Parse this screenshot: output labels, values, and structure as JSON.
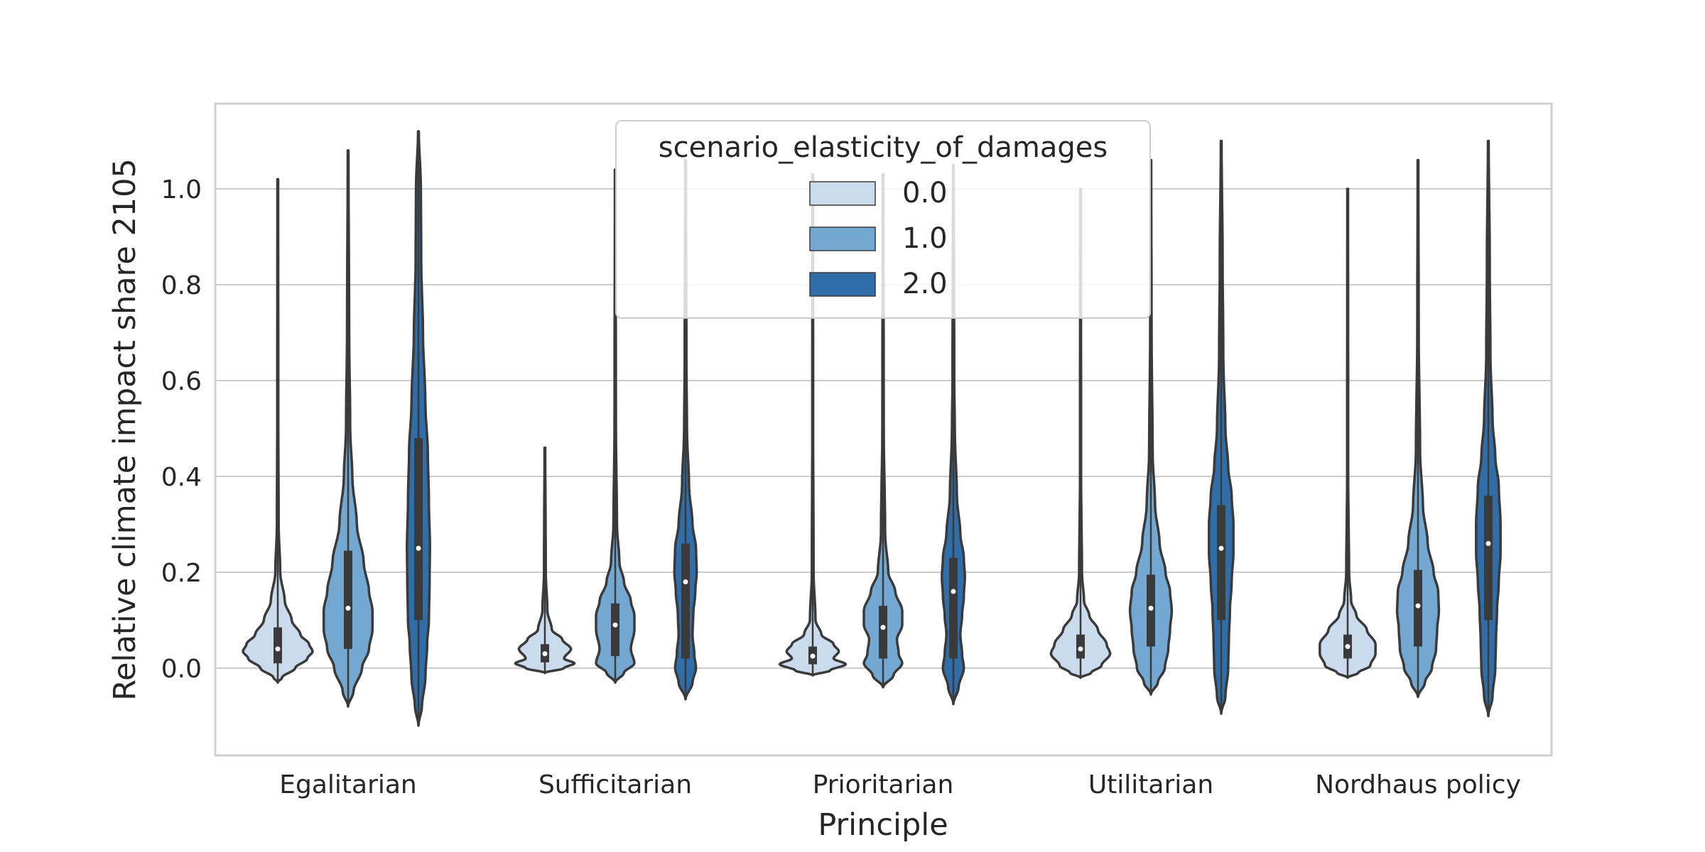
{
  "chart_data": {
    "type": "violin",
    "title": "",
    "xlabel": "Principle",
    "ylabel": "Relative climate impact share 2105",
    "ylim": [
      -0.18,
      1.18
    ],
    "yticks": [
      "0.0",
      "0.2",
      "0.4",
      "0.6",
      "0.8",
      "1.0"
    ],
    "categories": [
      "Egalitarian",
      "Sufficitarian",
      "Prioritarian",
      "Utilitarian",
      "Nordhaus policy"
    ],
    "grid": "horizontal",
    "legend": {
      "title": "scenario_elasticity_of_damages",
      "placement": "top-center",
      "entries": [
        "0.0",
        "1.0",
        "2.0"
      ]
    },
    "colors": {
      "0.0": "#c9dbec",
      "1.0": "#72a8d1",
      "2.0": "#2f6ea9",
      "outline": "#3a3a3a",
      "grid": "#cccccc",
      "frame": "#cfcfcf"
    },
    "series": [
      {
        "name": "0.0",
        "violins": [
          {
            "min": -0.03,
            "max": 1.02,
            "q1": 0.01,
            "median": 0.04,
            "q3": 0.085,
            "width": [
              [
                -0.03,
                0
              ],
              [
                -0.02,
                0.12
              ],
              [
                0,
                0.5
              ],
              [
                0.02,
                0.85
              ],
              [
                0.035,
                1
              ],
              [
                0.05,
                0.9
              ],
              [
                0.07,
                0.65
              ],
              [
                0.1,
                0.4
              ],
              [
                0.14,
                0.2
              ],
              [
                0.2,
                0.07
              ],
              [
                0.3,
                0.025
              ],
              [
                0.5,
                0.015
              ],
              [
                1.02,
                0.01
              ]
            ]
          },
          {
            "min": -0.01,
            "max": 0.46,
            "q1": 0.012,
            "median": 0.03,
            "q3": 0.05,
            "width": [
              [
                -0.01,
                0
              ],
              [
                0,
                0.55
              ],
              [
                0.01,
                0.85
              ],
              [
                0.02,
                0.55
              ],
              [
                0.04,
                0.75
              ],
              [
                0.06,
                0.5
              ],
              [
                0.08,
                0.2
              ],
              [
                0.12,
                0.07
              ],
              [
                0.2,
                0.025
              ],
              [
                0.46,
                0.01
              ]
            ]
          },
          {
            "min": -0.015,
            "max": 1.03,
            "q1": 0.008,
            "median": 0.025,
            "q3": 0.045,
            "width": [
              [
                -0.015,
                0
              ],
              [
                -0.005,
                0.5
              ],
              [
                0.008,
                0.95
              ],
              [
                0.02,
                0.6
              ],
              [
                0.035,
                0.75
              ],
              [
                0.05,
                0.6
              ],
              [
                0.07,
                0.25
              ],
              [
                0.1,
                0.08
              ],
              [
                0.2,
                0.025
              ],
              [
                0.5,
                0.012
              ],
              [
                1.03,
                0.01
              ]
            ]
          },
          {
            "min": -0.02,
            "max": 1.0,
            "q1": 0.02,
            "median": 0.04,
            "q3": 0.07,
            "width": [
              [
                -0.02,
                0
              ],
              [
                -0.01,
                0.3
              ],
              [
                0.005,
                0.6
              ],
              [
                0.03,
                0.85
              ],
              [
                0.05,
                0.75
              ],
              [
                0.08,
                0.5
              ],
              [
                0.11,
                0.25
              ],
              [
                0.14,
                0.1
              ],
              [
                0.2,
                0.04
              ],
              [
                0.4,
                0.015
              ],
              [
                1.0,
                0.01
              ]
            ]
          },
          {
            "min": -0.02,
            "max": 1.0,
            "q1": 0.02,
            "median": 0.045,
            "q3": 0.07,
            "width": [
              [
                -0.02,
                0
              ],
              [
                -0.01,
                0.3
              ],
              [
                0.005,
                0.65
              ],
              [
                0.03,
                0.8
              ],
              [
                0.05,
                0.8
              ],
              [
                0.08,
                0.55
              ],
              [
                0.11,
                0.25
              ],
              [
                0.14,
                0.1
              ],
              [
                0.2,
                0.04
              ],
              [
                0.4,
                0.015
              ],
              [
                1.0,
                0.01
              ]
            ]
          }
        ]
      },
      {
        "name": "1.0",
        "violins": [
          {
            "min": -0.08,
            "max": 1.08,
            "q1": 0.04,
            "median": 0.125,
            "q3": 0.245,
            "width": [
              [
                -0.08,
                0
              ],
              [
                -0.05,
                0.15
              ],
              [
                0,
                0.4
              ],
              [
                0.04,
                0.6
              ],
              [
                0.08,
                0.7
              ],
              [
                0.12,
                0.7
              ],
              [
                0.16,
                0.6
              ],
              [
                0.22,
                0.45
              ],
              [
                0.3,
                0.25
              ],
              [
                0.4,
                0.12
              ],
              [
                0.5,
                0.06
              ],
              [
                0.7,
                0.03
              ],
              [
                1.08,
                0.01
              ]
            ]
          },
          {
            "min": -0.03,
            "max": 1.04,
            "q1": 0.025,
            "median": 0.09,
            "q3": 0.135,
            "width": [
              [
                -0.03,
                0
              ],
              [
                -0.01,
                0.25
              ],
              [
                0.01,
                0.55
              ],
              [
                0.04,
                0.45
              ],
              [
                0.08,
                0.55
              ],
              [
                0.11,
                0.55
              ],
              [
                0.14,
                0.45
              ],
              [
                0.18,
                0.25
              ],
              [
                0.22,
                0.12
              ],
              [
                0.3,
                0.05
              ],
              [
                0.5,
                0.02
              ],
              [
                1.04,
                0.01
              ]
            ]
          },
          {
            "min": -0.04,
            "max": 1.03,
            "q1": 0.02,
            "median": 0.085,
            "q3": 0.13,
            "width": [
              [
                -0.04,
                0
              ],
              [
                -0.015,
                0.3
              ],
              [
                0.01,
                0.55
              ],
              [
                0.03,
                0.45
              ],
              [
                0.06,
                0.4
              ],
              [
                0.09,
                0.55
              ],
              [
                0.12,
                0.55
              ],
              [
                0.16,
                0.35
              ],
              [
                0.2,
                0.15
              ],
              [
                0.28,
                0.06
              ],
              [
                0.5,
                0.02
              ],
              [
                1.03,
                0.01
              ]
            ]
          },
          {
            "min": -0.055,
            "max": 1.06,
            "q1": 0.045,
            "median": 0.125,
            "q3": 0.195,
            "width": [
              [
                -0.055,
                0
              ],
              [
                -0.03,
                0.2
              ],
              [
                0,
                0.4
              ],
              [
                0.04,
                0.5
              ],
              [
                0.08,
                0.55
              ],
              [
                0.12,
                0.6
              ],
              [
                0.16,
                0.55
              ],
              [
                0.2,
                0.42
              ],
              [
                0.26,
                0.25
              ],
              [
                0.34,
                0.12
              ],
              [
                0.45,
                0.05
              ],
              [
                0.7,
                0.02
              ],
              [
                1.06,
                0.01
              ]
            ]
          },
          {
            "min": -0.06,
            "max": 1.06,
            "q1": 0.045,
            "median": 0.13,
            "q3": 0.205,
            "width": [
              [
                -0.06,
                0
              ],
              [
                -0.03,
                0.2
              ],
              [
                0,
                0.4
              ],
              [
                0.04,
                0.52
              ],
              [
                0.08,
                0.55
              ],
              [
                0.12,
                0.6
              ],
              [
                0.16,
                0.58
              ],
              [
                0.2,
                0.45
              ],
              [
                0.26,
                0.28
              ],
              [
                0.34,
                0.14
              ],
              [
                0.45,
                0.06
              ],
              [
                0.7,
                0.02
              ],
              [
                1.06,
                0.01
              ]
            ]
          }
        ]
      },
      {
        "name": "2.0",
        "violins": [
          {
            "min": -0.12,
            "max": 1.12,
            "q1": 0.1,
            "median": 0.25,
            "q3": 0.48,
            "width": [
              [
                -0.12,
                0
              ],
              [
                -0.08,
                0.1
              ],
              [
                -0.02,
                0.2
              ],
              [
                0.05,
                0.25
              ],
              [
                0.1,
                0.3
              ],
              [
                0.18,
                0.32
              ],
              [
                0.25,
                0.33
              ],
              [
                0.35,
                0.3
              ],
              [
                0.45,
                0.27
              ],
              [
                0.55,
                0.2
              ],
              [
                0.7,
                0.13
              ],
              [
                0.85,
                0.08
              ],
              [
                1.0,
                0.07
              ],
              [
                1.12,
                0.01
              ]
            ]
          },
          {
            "min": -0.065,
            "max": 1.06,
            "q1": 0.02,
            "median": 0.18,
            "q3": 0.26,
            "width": [
              [
                -0.065,
                0
              ],
              [
                -0.03,
                0.2
              ],
              [
                0,
                0.3
              ],
              [
                0.03,
                0.25
              ],
              [
                0.07,
                0.2
              ],
              [
                0.11,
                0.22
              ],
              [
                0.16,
                0.28
              ],
              [
                0.2,
                0.32
              ],
              [
                0.25,
                0.3
              ],
              [
                0.3,
                0.2
              ],
              [
                0.38,
                0.1
              ],
              [
                0.5,
                0.04
              ],
              [
                0.64,
                0.025
              ],
              [
                1.06,
                0.01
              ]
            ]
          },
          {
            "min": -0.075,
            "max": 1.05,
            "q1": 0.02,
            "median": 0.16,
            "q3": 0.23,
            "width": [
              [
                -0.075,
                0
              ],
              [
                -0.04,
                0.15
              ],
              [
                0,
                0.3
              ],
              [
                0.03,
                0.25
              ],
              [
                0.07,
                0.2
              ],
              [
                0.11,
                0.25
              ],
              [
                0.15,
                0.3
              ],
              [
                0.19,
                0.33
              ],
              [
                0.23,
                0.3
              ],
              [
                0.28,
                0.2
              ],
              [
                0.36,
                0.1
              ],
              [
                0.5,
                0.04
              ],
              [
                0.6,
                0.025
              ],
              [
                1.05,
                0.01
              ]
            ]
          },
          {
            "min": -0.095,
            "max": 1.1,
            "q1": 0.1,
            "median": 0.25,
            "q3": 0.34,
            "width": [
              [
                -0.095,
                0
              ],
              [
                -0.06,
                0.12
              ],
              [
                0,
                0.2
              ],
              [
                0.06,
                0.22
              ],
              [
                0.12,
                0.25
              ],
              [
                0.18,
                0.3
              ],
              [
                0.24,
                0.35
              ],
              [
                0.3,
                0.35
              ],
              [
                0.36,
                0.3
              ],
              [
                0.42,
                0.2
              ],
              [
                0.5,
                0.12
              ],
              [
                0.65,
                0.06
              ],
              [
                0.85,
                0.04
              ],
              [
                1.1,
                0.01
              ]
            ]
          },
          {
            "min": -0.1,
            "max": 1.1,
            "q1": 0.1,
            "median": 0.26,
            "q3": 0.36,
            "width": [
              [
                -0.1,
                0
              ],
              [
                -0.06,
                0.12
              ],
              [
                0,
                0.2
              ],
              [
                0.06,
                0.22
              ],
              [
                0.12,
                0.25
              ],
              [
                0.18,
                0.3
              ],
              [
                0.24,
                0.35
              ],
              [
                0.3,
                0.35
              ],
              [
                0.38,
                0.3
              ],
              [
                0.44,
                0.2
              ],
              [
                0.52,
                0.12
              ],
              [
                0.65,
                0.06
              ],
              [
                0.85,
                0.04
              ],
              [
                1.1,
                0.01
              ]
            ]
          }
        ]
      }
    ]
  }
}
